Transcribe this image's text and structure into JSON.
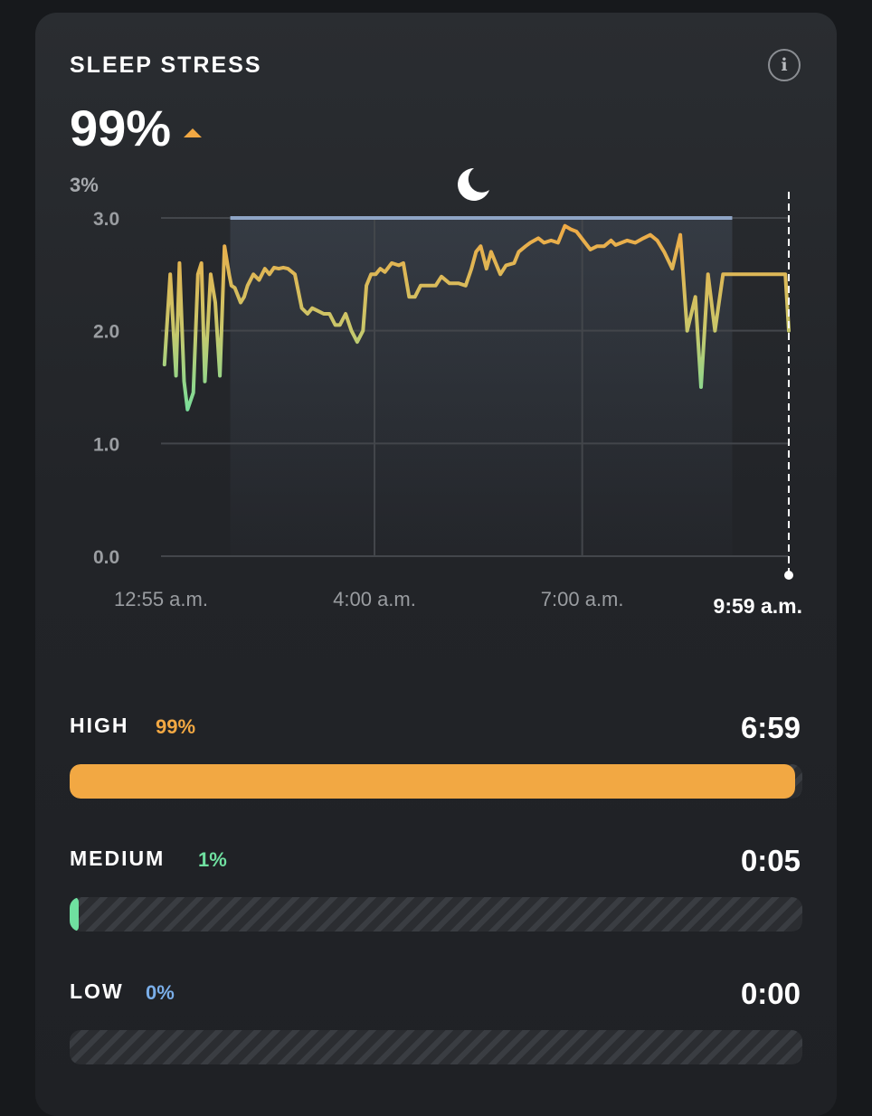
{
  "header": {
    "title": "SLEEP STRESS",
    "info_icon": "info-circle-icon",
    "value": "99%",
    "trend_icon": "triangle-up-icon",
    "sub_value": "3%"
  },
  "colors": {
    "high": "#f2a843",
    "medium": "#6fe0a0",
    "low": "#7aaee8",
    "sleep_band": "#8fa5c6"
  },
  "chart_data": {
    "type": "line",
    "title": "",
    "xlabel": "",
    "ylabel": "",
    "ylim": [
      0,
      3
    ],
    "y_ticks": [
      "3.0",
      "2.0",
      "1.0",
      "0.0"
    ],
    "x_ticks": [
      "12:55 a.m.",
      "4:00 a.m.",
      "7:00 a.m."
    ],
    "x_ticks_minutes": [
      0,
      185,
      365
    ],
    "x_range_minutes": [
      0,
      544
    ],
    "sleep_period_minutes": [
      60,
      495
    ],
    "sleep_level": 3.0,
    "sleep_icon": "crescent-moon-icon",
    "current_time_label": "9:59 a.m.",
    "current_value": 2.0,
    "grid": true,
    "legend": "none",
    "series": [
      {
        "x": [
          3,
          8,
          13,
          16,
          20,
          23,
          28,
          32,
          35,
          38,
          43,
          47,
          51,
          55,
          59,
          61,
          64,
          69,
          72,
          75,
          80,
          85,
          90,
          94,
          98,
          102,
          106,
          110,
          116,
          122,
          127,
          131,
          135,
          141,
          146,
          151,
          155,
          160,
          165,
          170,
          175,
          178,
          182,
          186,
          190,
          194,
          200,
          206,
          210,
          215,
          220,
          225,
          230,
          238,
          243,
          250,
          258,
          264,
          269,
          273,
          277,
          282,
          286,
          290,
          294,
          299,
          306,
          310,
          316,
          320,
          327,
          332,
          338,
          344,
          350,
          355,
          360,
          366,
          372,
          378,
          384,
          390,
          394,
          399,
          404,
          411,
          418,
          424,
          430,
          436,
          443,
          450,
          456,
          463,
          468,
          474,
          480,
          487,
          495,
          503,
          510,
          516,
          521,
          526,
          528,
          531,
          534,
          538,
          541,
          544
        ],
        "values": [
          1.7,
          2.5,
          1.6,
          2.6,
          1.55,
          1.3,
          1.45,
          2.5,
          2.6,
          1.55,
          2.5,
          2.25,
          1.6,
          2.75,
          2.5,
          2.4,
          2.38,
          2.25,
          2.3,
          2.4,
          2.5,
          2.45,
          2.55,
          2.5,
          2.56,
          2.55,
          2.56,
          2.55,
          2.5,
          2.2,
          2.15,
          2.2,
          2.18,
          2.15,
          2.15,
          2.05,
          2.05,
          2.15,
          2.0,
          1.9,
          2.0,
          2.4,
          2.5,
          2.5,
          2.55,
          2.52,
          2.6,
          2.58,
          2.6,
          2.3,
          2.3,
          2.4,
          2.4,
          2.4,
          2.48,
          2.42,
          2.42,
          2.4,
          2.55,
          2.7,
          2.75,
          2.55,
          2.7,
          2.6,
          2.5,
          2.58,
          2.6,
          2.7,
          2.75,
          2.78,
          2.82,
          2.78,
          2.8,
          2.78,
          2.93,
          2.9,
          2.88,
          2.8,
          2.72,
          2.75,
          2.75,
          2.8,
          2.76,
          2.78,
          2.8,
          2.78,
          2.82,
          2.85,
          2.8,
          2.7,
          2.55,
          2.85,
          2.0,
          2.3,
          1.5,
          2.5,
          2.0,
          2.5,
          2.5,
          2.5,
          2.5,
          2.5,
          2.5,
          2.5,
          2.5,
          2.5,
          2.5,
          2.5,
          2.5,
          2.0
        ]
      }
    ]
  },
  "breakdown": [
    {
      "label": "HIGH",
      "percent": "99%",
      "duration": "6:59",
      "fraction": 0.99,
      "color": "#f2a843"
    },
    {
      "label": "MEDIUM",
      "percent": "1%",
      "duration": "0:05",
      "fraction": 0.01,
      "color": "#6fe0a0"
    },
    {
      "label": "LOW",
      "percent": "0%",
      "duration": "0:00",
      "fraction": 0.0,
      "color": "#7aaee8"
    }
  ]
}
